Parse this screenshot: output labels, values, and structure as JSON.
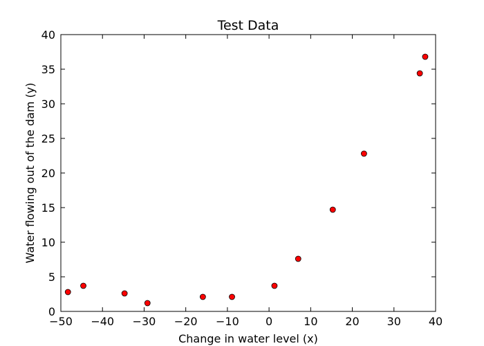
{
  "chart_data": {
    "type": "scatter",
    "title": "Test Data",
    "xlabel": "Change in water level (x)",
    "ylabel": "Water flowing out of the dam (y)",
    "xlim": [
      -50,
      40
    ],
    "ylim": [
      0,
      40
    ],
    "x_ticks": [
      -50,
      -40,
      -30,
      -20,
      -10,
      0,
      10,
      20,
      30,
      40
    ],
    "y_ticks": [
      0,
      5,
      10,
      15,
      20,
      25,
      30,
      35,
      40
    ],
    "x_tick_labels": [
      "−50",
      "−40",
      "−30",
      "−20",
      "−10",
      "0",
      "10",
      "20",
      "30",
      "40"
    ],
    "y_tick_labels": [
      "0",
      "5",
      "10",
      "15",
      "20",
      "25",
      "30",
      "35",
      "40"
    ],
    "grid": false,
    "marker_color": "#ff0000",
    "marker_edge_color": "#000000",
    "points": [
      {
        "x": -48.3,
        "y": 2.8
      },
      {
        "x": -44.6,
        "y": 3.7
      },
      {
        "x": -34.7,
        "y": 2.6
      },
      {
        "x": -29.2,
        "y": 1.2
      },
      {
        "x": -15.9,
        "y": 2.1
      },
      {
        "x": -8.9,
        "y": 2.1
      },
      {
        "x": 1.3,
        "y": 3.7
      },
      {
        "x": 7.0,
        "y": 7.6
      },
      {
        "x": 15.3,
        "y": 14.7
      },
      {
        "x": 22.8,
        "y": 22.8
      },
      {
        "x": 36.2,
        "y": 34.4
      },
      {
        "x": 37.5,
        "y": 36.8
      }
    ]
  }
}
